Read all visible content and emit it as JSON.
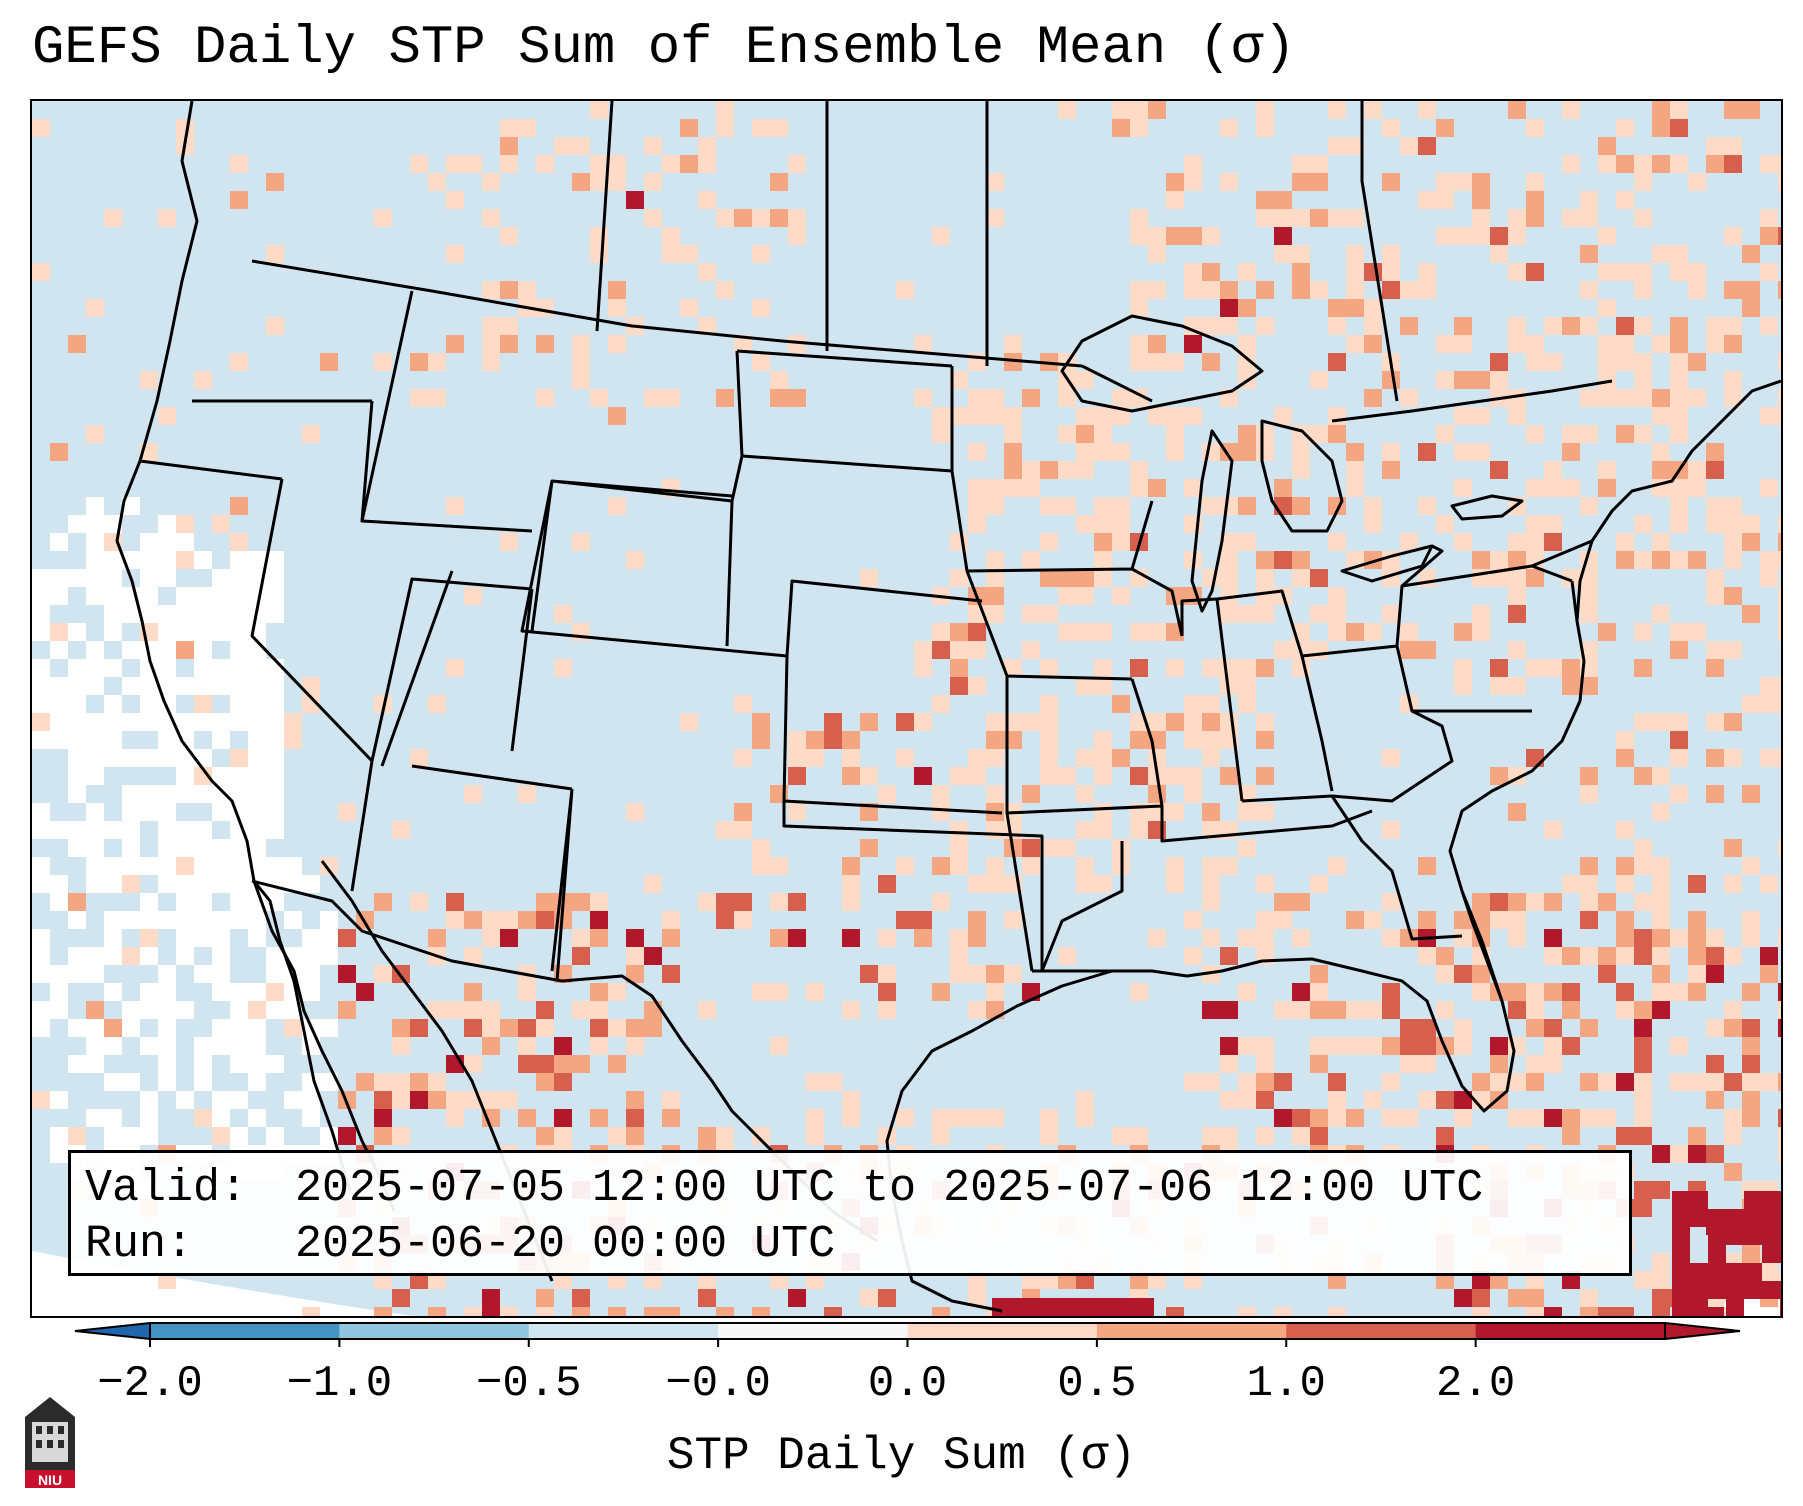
{
  "title": "GEFS Daily STP Sum of Ensemble Mean (σ)",
  "map": {
    "ocean_color": "#d1e5f0",
    "offmap_color": "#ffffff",
    "mask_color": "#ffffff"
  },
  "info": {
    "valid_label": "Valid:",
    "valid_value": "2025-07-05 12:00 UTC to 2025-07-06 12:00 UTC",
    "run_label": "Run:",
    "run_value": "2025-06-20 00:00 UTC"
  },
  "colorbar": {
    "label": "STP Daily Sum (σ)",
    "ticks": [
      "−2.0",
      "−1.0",
      "−0.5",
      "−0.0",
      "0.0",
      "0.5",
      "1.0",
      "2.0"
    ],
    "colors": [
      "#4393c3",
      "#92c5de",
      "#d1e5f0",
      "#f7f7f7",
      "#fddbc7",
      "#f4a582",
      "#d6604d",
      "#b2182b"
    ],
    "under_color": "#2166ac",
    "over_color": "#b2182b"
  },
  "logo": {
    "text": "NIU"
  }
}
